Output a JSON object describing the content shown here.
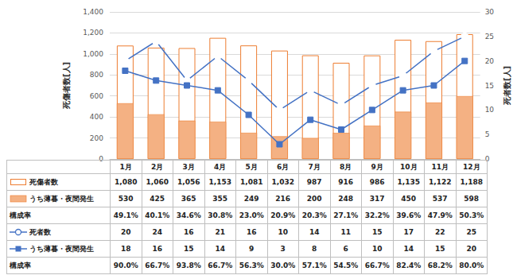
{
  "chart_data": {
    "type": "bar",
    "categories": [
      "1月",
      "2月",
      "3月",
      "4月",
      "5月",
      "6月",
      "7月",
      "8月",
      "9月",
      "10月",
      "11月",
      "12月"
    ],
    "y_label": "死傷者数[人]",
    "y2_label": "死者数[人]",
    "ylim": [
      0,
      1400
    ],
    "yticks": [
      0,
      200,
      400,
      600,
      800,
      {
        "value": 1000,
        "label": "1,000"
      },
      {
        "value": 1200,
        "label": "1,200"
      },
      {
        "value": 1400,
        "label": "1,400"
      }
    ],
    "y2lim": [
      0,
      30
    ],
    "y2ticks": [
      0,
      5,
      10,
      15,
      20,
      25,
      30
    ],
    "grid": true,
    "series": [
      {
        "name": "死傷者数",
        "type": "bar",
        "color": "#ed7d31",
        "marker": "hollow",
        "values": [
          1080,
          1060,
          1056,
          1153,
          1081,
          1032,
          987,
          916,
          986,
          1135,
          1122,
          1188
        ],
        "value_labels": [
          "1,080",
          "1,060",
          "1,056",
          "1,153",
          "1,081",
          "1,032",
          "987",
          "916",
          "986",
          "1,135",
          "1,122",
          "1,188"
        ]
      },
      {
        "name": "うち薄暮・夜間発生",
        "type": "bar",
        "color": "#f4b183",
        "marker": "filled",
        "values": [
          530,
          425,
          365,
          355,
          249,
          216,
          200,
          248,
          317,
          450,
          537,
          598
        ]
      },
      {
        "name": "死者数",
        "type": "line",
        "axis": "y2",
        "color": "#4472c4",
        "marker": "hollow_circle",
        "values": [
          20,
          24,
          16,
          21,
          16,
          10,
          14,
          11,
          15,
          17,
          22,
          25
        ]
      },
      {
        "name": "うち薄暮・夜間発生",
        "type": "line",
        "axis": "y2",
        "color": "#4472c4",
        "marker": "square",
        "values": [
          18,
          16,
          15,
          14,
          9,
          3,
          8,
          6,
          10,
          14,
          15,
          20
        ]
      }
    ],
    "rates": [
      {
        "name": "構成率",
        "values": [
          49.1,
          40.1,
          34.6,
          30.8,
          23.0,
          20.9,
          20.3,
          27.1,
          32.2,
          39.6,
          47.9,
          50.3
        ],
        "value_labels": [
          "49.1%",
          "40.1%",
          "34.6%",
          "30.8%",
          "23.0%",
          "20.9%",
          "20.3%",
          "27.1%",
          "32.2%",
          "39.6%",
          "47.9%",
          "50.3%"
        ]
      },
      {
        "name": "構成率",
        "values": [
          90.0,
          66.7,
          93.8,
          66.7,
          56.3,
          30.0,
          57.1,
          54.5,
          66.7,
          82.4,
          68.2,
          80.0
        ],
        "value_labels": [
          "90.0%",
          "66.7%",
          "93.8%",
          "66.7%",
          "56.3%",
          "30.0%",
          "57.1%",
          "54.5%",
          "66.7%",
          "82.4%",
          "68.2%",
          "80.0%"
        ]
      }
    ]
  }
}
